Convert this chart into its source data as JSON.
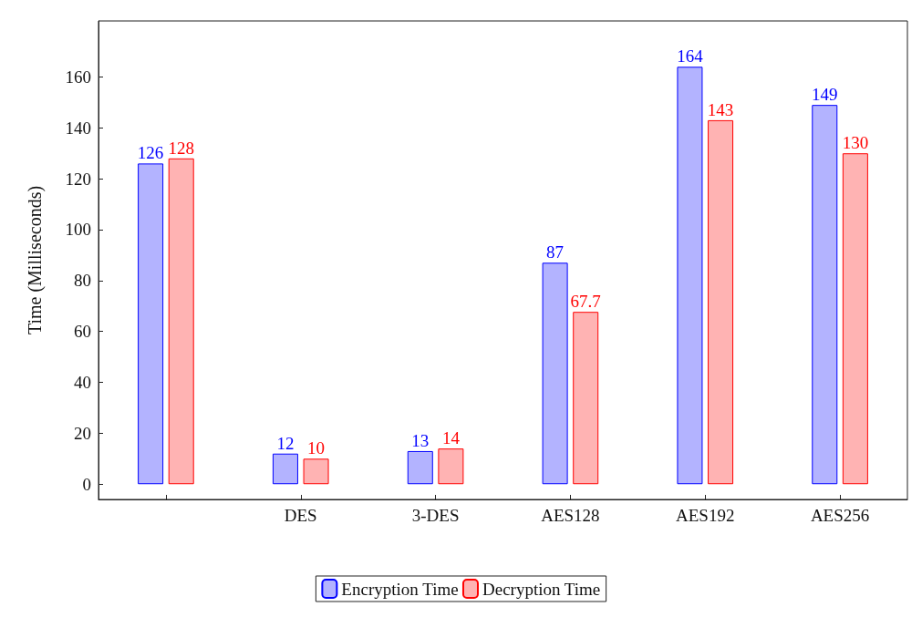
{
  "chart_data": {
    "type": "bar",
    "ylabel": "Time (Milliseconds)",
    "categories": [
      null,
      "DES",
      "3-DES",
      "AES128",
      "AES192",
      "AES256"
    ],
    "series": [
      {
        "name": "Encryption Time",
        "color": "#b3b3ff",
        "values": [
          126,
          12,
          13,
          87,
          164,
          149
        ]
      },
      {
        "name": "Decryption Time",
        "color": "#ffb3b3",
        "values": [
          128,
          10,
          14,
          67.7,
          143,
          130
        ]
      }
    ],
    "ylim": [
      -6,
      182
    ],
    "yticks": [
      0,
      20,
      40,
      60,
      80,
      100,
      120,
      140,
      160
    ],
    "data_labels": true,
    "legend": "bottom",
    "grid": false
  }
}
